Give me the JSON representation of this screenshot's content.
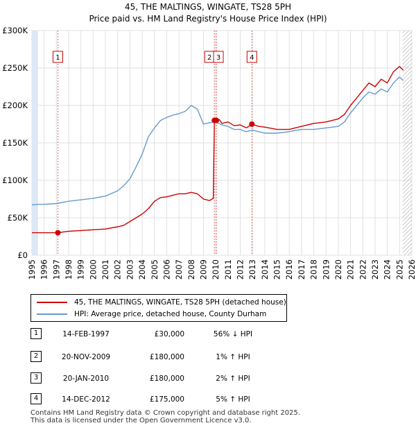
{
  "chart_data": {
    "type": "line",
    "title": "45, THE MALTINGS, WINGATE, TS28 5PH",
    "subtitle": "Price paid vs. HM Land Registry's House Price Index (HPI)",
    "xlabel": "",
    "ylabel": "",
    "xlim": [
      1995,
      2026
    ],
    "ylim": [
      0,
      300000
    ],
    "x_ticks": [
      "1995",
      "1996",
      "1997",
      "1998",
      "1999",
      "2000",
      "2001",
      "2002",
      "2003",
      "2004",
      "2005",
      "2006",
      "2007",
      "2008",
      "2009",
      "2010",
      "2011",
      "2012",
      "2013",
      "2014",
      "2015",
      "2016",
      "2017",
      "2018",
      "2019",
      "2020",
      "2021",
      "2022",
      "2023",
      "2024",
      "2025",
      "2026"
    ],
    "y_ticks": [
      {
        "value": 0,
        "label": "£0"
      },
      {
        "value": 50000,
        "label": "£50K"
      },
      {
        "value": 100000,
        "label": "£100K"
      },
      {
        "value": 150000,
        "label": "£150K"
      },
      {
        "value": 200000,
        "label": "£200K"
      },
      {
        "value": 250000,
        "label": "£250K"
      },
      {
        "value": 300000,
        "label": "£300K"
      }
    ],
    "shaded_span": [
      1995,
      1995.5
    ],
    "hatched_span": [
      2025.25,
      2026
    ],
    "series": [
      {
        "name": "45, THE MALTINGS, WINGATE, TS28 5PH (detached house)",
        "color": "#cc0000",
        "x": [
          1995,
          1996,
          1997.12,
          1998,
          1999,
          2000,
          2001,
          2002,
          2002.5,
          2003,
          2003.5,
          2004,
          2004.5,
          2005,
          2005.5,
          2006,
          2006.5,
          2007,
          2007.5,
          2008,
          2008.5,
          2009,
          2009.5,
          2009.8,
          2009.89,
          2010.05,
          2010.3,
          2010.5,
          2011,
          2011.5,
          2012,
          2012.5,
          2012.95,
          2013.5,
          2014,
          2015,
          2016,
          2017,
          2018,
          2019,
          2020,
          2020.5,
          2021,
          2021.5,
          2022,
          2022.5,
          2023,
          2023.5,
          2024,
          2024.5,
          2025,
          2025.3
        ],
        "values": [
          30000,
          30000,
          30000,
          32000,
          33000,
          34000,
          35000,
          38000,
          40000,
          45000,
          50000,
          55000,
          62000,
          72000,
          77000,
          78000,
          80000,
          82000,
          82000,
          84000,
          82000,
          75000,
          73000,
          76000,
          180000,
          180000,
          181000,
          176000,
          178000,
          173000,
          174000,
          170000,
          175000,
          172000,
          171000,
          168000,
          168000,
          172000,
          176000,
          178000,
          182000,
          188000,
          200000,
          210000,
          220000,
          230000,
          225000,
          235000,
          230000,
          245000,
          252000,
          247000
        ]
      },
      {
        "name": "HPI: Average price, detached house, County Durham",
        "color": "#6699cc",
        "x": [
          1995,
          1995.5,
          1996,
          1997,
          1998,
          1999,
          2000,
          2001,
          2002,
          2002.5,
          2003,
          2003.5,
          2004,
          2004.5,
          2005,
          2005.5,
          2006,
          2006.5,
          2007,
          2007.5,
          2008,
          2008.5,
          2009,
          2009.5,
          2010,
          2010.5,
          2011,
          2011.5,
          2012,
          2012.5,
          2013,
          2013.5,
          2014,
          2015,
          2016,
          2017,
          2018,
          2019,
          2020,
          2020.5,
          2021,
          2021.5,
          2022,
          2022.5,
          2023,
          2023.5,
          2024,
          2024.5,
          2025,
          2025.3
        ],
        "values": [
          67000,
          68000,
          68000,
          69000,
          72000,
          74000,
          76000,
          79000,
          86000,
          93000,
          102000,
          118000,
          135000,
          158000,
          170000,
          180000,
          184000,
          187000,
          189000,
          192000,
          200000,
          195000,
          175000,
          177000,
          178000,
          174000,
          172000,
          168000,
          168000,
          165000,
          167000,
          165000,
          163000,
          163000,
          165000,
          168000,
          168000,
          170000,
          172000,
          178000,
          190000,
          200000,
          210000,
          218000,
          215000,
          222000,
          218000,
          230000,
          238000,
          233000
        ]
      }
    ],
    "sale_markers": [
      {
        "label": "1",
        "x": 1997.12,
        "value": 30000
      },
      {
        "label": "2",
        "x": 2009.89,
        "value": 180000
      },
      {
        "label": "3",
        "x": 2010.05,
        "value": 180000
      },
      {
        "label": "4",
        "x": 2012.95,
        "value": 175000
      }
    ]
  },
  "legend": {
    "items": [
      {
        "label": "45, THE MALTINGS, WINGATE, TS28 5PH (detached house)",
        "color": "#cc0000"
      },
      {
        "label": "HPI: Average price, detached house, County Durham",
        "color": "#6699cc"
      }
    ]
  },
  "sales": [
    {
      "num": "1",
      "date": "14-FEB-1997",
      "price": "£30,000",
      "hpi": "56% ↓ HPI"
    },
    {
      "num": "2",
      "date": "20-NOV-2009",
      "price": "£180,000",
      "hpi": "1% ↑ HPI"
    },
    {
      "num": "3",
      "date": "20-JAN-2010",
      "price": "£180,000",
      "hpi": "2% ↑ HPI"
    },
    {
      "num": "4",
      "date": "14-DEC-2012",
      "price": "£175,000",
      "hpi": "5% ↑ HPI"
    }
  ],
  "footer": {
    "line1": "Contains HM Land Registry data © Crown copyright and database right 2025.",
    "line2": "This data is licensed under the Open Government Licence v3.0."
  }
}
